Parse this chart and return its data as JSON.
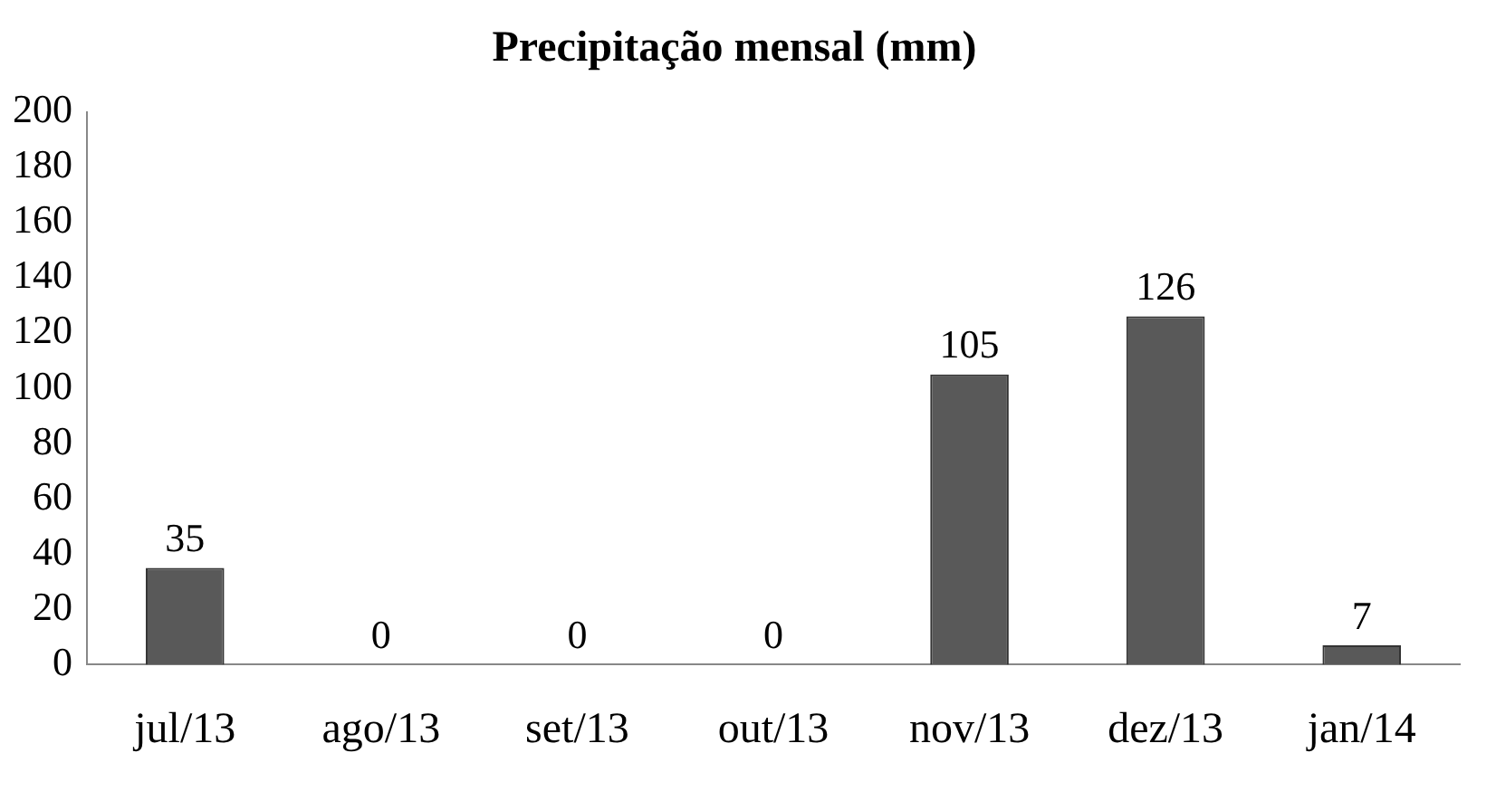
{
  "chart_data": {
    "type": "bar",
    "title": "Precipitação mensal (mm)",
    "categories": [
      "jul/13",
      "ago/13",
      "set/13",
      "out/13",
      "nov/13",
      "dez/13",
      "jan/14"
    ],
    "values": [
      35,
      0,
      0,
      0,
      105,
      126,
      7
    ],
    "color": "#595959",
    "ylim": [
      0,
      200
    ],
    "yticks": [
      0,
      20,
      40,
      60,
      80,
      100,
      120,
      140,
      160,
      180,
      200
    ],
    "grid": false,
    "legend": false,
    "data_labels": true
  }
}
